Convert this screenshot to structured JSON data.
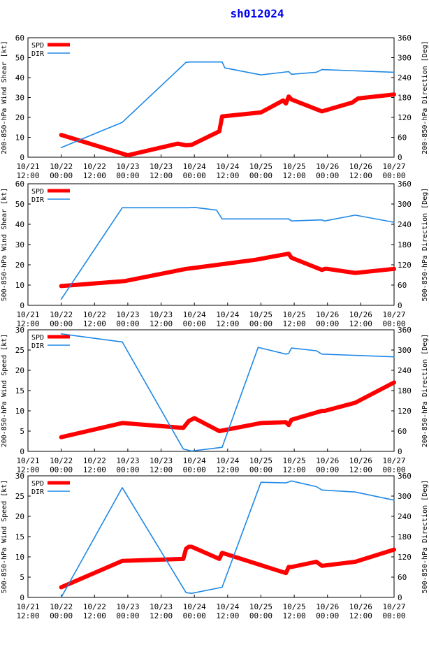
{
  "page_title": "sh012024",
  "colors": {
    "spd": "#ff0000",
    "dir": "#1e88e5",
    "title": "#0000ee",
    "axis": "#000000"
  },
  "x_ticks": [
    [
      "10/21",
      "12:00"
    ],
    [
      "10/22",
      "00:00"
    ],
    [
      "10/22",
      "12:00"
    ],
    [
      "10/23",
      "00:00"
    ],
    [
      "10/23",
      "12:00"
    ],
    [
      "10/24",
      "00:00"
    ],
    [
      "10/24",
      "12:00"
    ],
    [
      "10/25",
      "00:00"
    ],
    [
      "10/25",
      "12:00"
    ],
    [
      "10/26",
      "00:00"
    ],
    [
      "10/26",
      "12:00"
    ],
    [
      "10/27",
      "00:00"
    ]
  ],
  "chart_data": [
    {
      "type": "line",
      "title": "",
      "xlabel": "",
      "xlim": [
        0,
        132
      ],
      "ylabel": "200-850-hPa Wind Shear [kt]",
      "ylim": [
        0,
        60
      ],
      "yticks": [
        0,
        10,
        20,
        30,
        40,
        50,
        60
      ],
      "y2label": "200-850-hPa Direction [Deg]",
      "y2lim": [
        0,
        360
      ],
      "y2ticks": [
        0,
        60,
        120,
        180,
        240,
        300,
        360
      ],
      "legend": [
        "SPD",
        "DIR"
      ],
      "series": [
        {
          "name": "SPD",
          "axis": "left",
          "x": [
            12,
            36,
            54,
            57,
            59,
            69,
            70,
            84,
            92,
            93,
            94,
            95,
            106,
            117,
            119,
            132
          ],
          "y": [
            11.2,
            1.0,
            6.8,
            6.0,
            6.2,
            13.0,
            20.5,
            22.5,
            28.5,
            27.0,
            30.5,
            29.0,
            23.0,
            27.5,
            29.5,
            31.5
          ]
        },
        {
          "name": "DIR",
          "axis": "right",
          "x": [
            12,
            34,
            57,
            59,
            70,
            71,
            84,
            94,
            95,
            104,
            106,
            132
          ],
          "y": [
            29,
            105,
            286,
            287,
            287,
            269,
            248,
            258,
            250,
            256,
            264,
            256
          ]
        }
      ]
    },
    {
      "type": "line",
      "title": "",
      "xlabel": "",
      "xlim": [
        0,
        132
      ],
      "ylabel": "500-850-hPa Wind Shear [kt]",
      "ylim": [
        0,
        60
      ],
      "yticks": [
        0,
        10,
        20,
        30,
        40,
        50,
        60
      ],
      "y2label": "500-850-hPa Direction [Deg]",
      "y2lim": [
        0,
        360
      ],
      "y2ticks": [
        0,
        60,
        120,
        180,
        240,
        300,
        360
      ],
      "legend": [
        "SPD",
        "DIR"
      ],
      "series": [
        {
          "name": "SPD",
          "axis": "left",
          "x": [
            12,
            35,
            57,
            60,
            82,
            94,
            95,
            106,
            107,
            108,
            118,
            132
          ],
          "y": [
            9.5,
            12.0,
            18.0,
            18.5,
            22.5,
            25.5,
            23.5,
            17.5,
            18.0,
            18.0,
            16.0,
            18.0
          ]
        },
        {
          "name": "DIR",
          "axis": "right",
          "x": [
            12,
            34,
            58,
            60,
            68,
            70,
            94,
            95,
            106,
            107,
            118,
            132
          ],
          "y": [
            18,
            289,
            289,
            290,
            282,
            256,
            256,
            250,
            253,
            250,
            267,
            246
          ]
        }
      ]
    },
    {
      "type": "line",
      "title": "",
      "xlabel": "",
      "xlim": [
        0,
        132
      ],
      "ylabel": "200-850-hPa Wind Speed [kt]",
      "ylim": [
        0,
        30
      ],
      "yticks": [
        0,
        5,
        10,
        15,
        20,
        25,
        30
      ],
      "y2label": "200-850-hPa Direction [Deg]",
      "y2lim": [
        0,
        360
      ],
      "y2ticks": [
        0,
        60,
        120,
        180,
        240,
        300,
        360
      ],
      "legend": [
        "SPD",
        "DIR"
      ],
      "series": [
        {
          "name": "SPD",
          "axis": "left",
          "x": [
            12,
            34,
            56,
            58,
            60,
            69,
            84,
            93,
            94,
            95,
            106,
            107,
            118,
            132
          ],
          "y": [
            3.5,
            7.0,
            5.8,
            7.5,
            8.2,
            5.0,
            7.0,
            7.2,
            6.5,
            7.8,
            10.0,
            10.0,
            12.0,
            17.0
          ]
        },
        {
          "name": "DIR",
          "axis": "right",
          "x": [
            12,
            34,
            56,
            59,
            70,
            83,
            93,
            94,
            95,
            104,
            106,
            132
          ],
          "y": [
            348,
            324,
            7,
            1,
            12,
            308,
            288,
            290,
            306,
            298,
            288,
            280
          ]
        }
      ]
    },
    {
      "type": "line",
      "title": "",
      "xlabel": "",
      "xlim": [
        0,
        132
      ],
      "ylabel": "500-850-hPa Wind Speed [kt]",
      "ylim": [
        0,
        30
      ],
      "yticks": [
        0,
        5,
        10,
        15,
        20,
        25,
        30
      ],
      "y2label": "500-850-hPa Direction [Deg]",
      "y2lim": [
        0,
        360
      ],
      "y2ticks": [
        0,
        60,
        120,
        180,
        240,
        300,
        360
      ],
      "legend": [
        "SPD",
        "DIR"
      ],
      "series": [
        {
          "name": "SPD",
          "axis": "left",
          "x": [
            12,
            34,
            56,
            57,
            58,
            59,
            69,
            70,
            93,
            94,
            95,
            104,
            106,
            118,
            132
          ],
          "y": [
            2.5,
            9.0,
            9.5,
            12.0,
            12.5,
            12.5,
            9.5,
            11.0,
            6.0,
            7.5,
            7.5,
            8.8,
            7.8,
            8.8,
            11.8
          ]
        },
        {
          "name": "DIR",
          "axis": "right",
          "x": [
            12,
            34,
            57,
            59,
            70,
            84,
            93,
            94,
            95,
            104,
            106,
            118,
            132
          ],
          "y": [
            0,
            325,
            14,
            12,
            30,
            341,
            339,
            342,
            345,
            328,
            318,
            312,
            288
          ]
        }
      ]
    }
  ]
}
